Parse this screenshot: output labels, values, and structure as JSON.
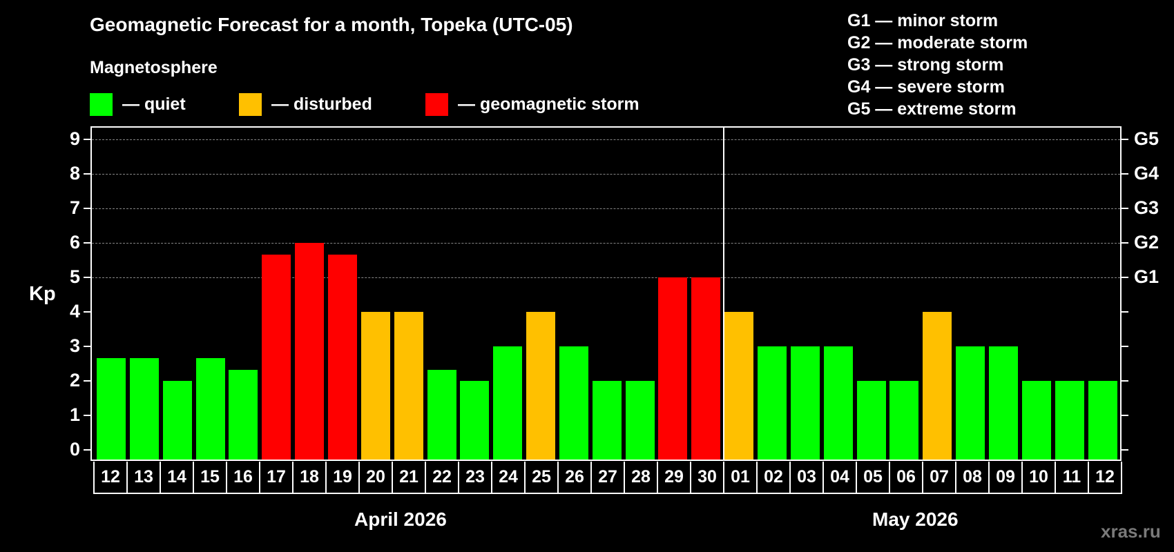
{
  "title": "Geomagnetic Forecast for a month, Topeka (UTC-05)",
  "legend": {
    "heading": "Magnetosphere",
    "items": [
      {
        "label": "— quiet",
        "color": "#00ff00"
      },
      {
        "label": "— disturbed",
        "color": "#ffc000"
      },
      {
        "label": "— geomagnetic storm",
        "color": "#ff0000"
      }
    ]
  },
  "storm_levels": [
    "G1 — minor storm",
    "G2 — moderate storm",
    "G3 — strong storm",
    "G4 — severe storm",
    "G5 — extreme storm"
  ],
  "axis": {
    "ylabel": "Kp",
    "left_ticks": [
      "0",
      "1",
      "2",
      "3",
      "4",
      "5",
      "6",
      "7",
      "8",
      "9"
    ],
    "right_ticks": {
      "5": "G1",
      "6": "G2",
      "7": "G3",
      "8": "G4",
      "9": "G5"
    }
  },
  "months": [
    {
      "label": "April 2026"
    },
    {
      "label": "May 2026"
    }
  ],
  "watermark": "xras.ru",
  "chart_data": {
    "type": "bar",
    "title": "Geomagnetic Forecast for a month, Topeka (UTC-05)",
    "xlabel": "April 2026 / May 2026",
    "ylabel": "Kp",
    "ylim": [
      0,
      9
    ],
    "grid": "dashed horizontal lines at Kp 5-9",
    "legend_position": "top",
    "categories": [
      "12",
      "13",
      "14",
      "15",
      "16",
      "17",
      "18",
      "19",
      "20",
      "21",
      "22",
      "23",
      "24",
      "25",
      "26",
      "27",
      "28",
      "29",
      "30",
      "01",
      "02",
      "03",
      "04",
      "05",
      "06",
      "07",
      "08",
      "09",
      "10",
      "11",
      "12"
    ],
    "values": [
      2.67,
      2.67,
      2,
      2.67,
      2.33,
      5.67,
      6,
      5.67,
      4,
      4,
      2.33,
      2,
      3,
      4,
      3,
      2,
      2,
      5,
      5,
      4,
      3,
      3,
      3,
      2,
      2,
      4,
      3,
      3,
      2,
      2,
      2
    ],
    "status": [
      "quiet",
      "quiet",
      "quiet",
      "quiet",
      "quiet",
      "storm",
      "storm",
      "storm",
      "disturbed",
      "disturbed",
      "quiet",
      "quiet",
      "quiet",
      "disturbed",
      "quiet",
      "quiet",
      "quiet",
      "storm",
      "storm",
      "disturbed",
      "quiet",
      "quiet",
      "quiet",
      "quiet",
      "quiet",
      "disturbed",
      "quiet",
      "quiet",
      "quiet",
      "quiet",
      "quiet"
    ],
    "status_colors": {
      "quiet": "#00ff00",
      "disturbed": "#ffc000",
      "storm": "#ff0000"
    },
    "month_split_index": 19,
    "right_axis": {
      "5": "G1",
      "6": "G2",
      "7": "G3",
      "8": "G4",
      "9": "G5"
    }
  }
}
